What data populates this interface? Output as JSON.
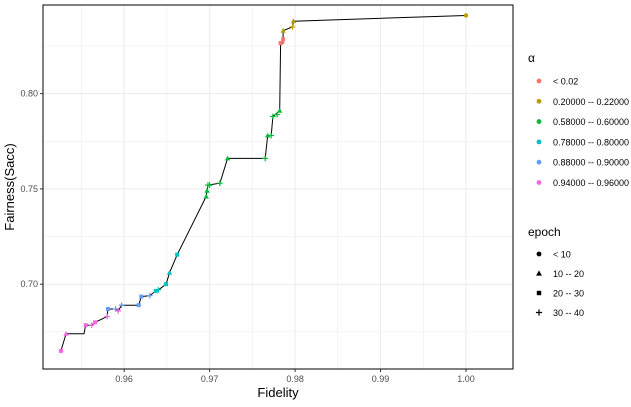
{
  "chart_data": {
    "type": "line",
    "xlabel": "Fidelity",
    "ylabel": "Fairness(Sacc)",
    "xlim": [
      0.9505,
      1.0055
    ],
    "ylim": [
      0.6555,
      0.8465
    ],
    "x_ticks": [
      0.96,
      0.97,
      0.98,
      0.99,
      1.0
    ],
    "x_tick_labels": [
      "0.96",
      "0.97",
      "0.98",
      "0.99",
      "1.00"
    ],
    "y_ticks": [
      0.7,
      0.75,
      0.8
    ],
    "y_tick_labels": [
      "0.70",
      "0.75",
      "0.80"
    ],
    "grid": true,
    "legend_position": "right",
    "colors": {
      "panel_border": "#000000",
      "grid": "#ebebeb",
      "line": "#000000"
    },
    "color_legend": {
      "title": "α",
      "entries": [
        {
          "label": "< 0.02",
          "color": "#F8766D"
        },
        {
          "label": "0.20000 -- 0.22000",
          "color": "#B79F00"
        },
        {
          "label": "0.58000 -- 0.60000",
          "color": "#00BA38"
        },
        {
          "label": "0.78000 -- 0.80000",
          "color": "#00BFC4"
        },
        {
          "label": "0.88000 -- 0.90000",
          "color": "#619CFF"
        },
        {
          "label": "0.94000 -- 0.96000",
          "color": "#F564E3"
        }
      ]
    },
    "shape_legend": {
      "title": "epoch",
      "entries": [
        {
          "label": "< 10",
          "shape": "circle"
        },
        {
          "label": "10 -- 20",
          "shape": "triangle"
        },
        {
          "label": "20 -- 30",
          "shape": "square"
        },
        {
          "label": "30 -- 40",
          "shape": "plus"
        }
      ]
    },
    "line_path": [
      [
        0.9526,
        0.665
      ],
      [
        0.9532,
        0.674
      ],
      [
        0.9553,
        0.674
      ],
      [
        0.9555,
        0.6785
      ],
      [
        0.9562,
        0.6785
      ],
      [
        0.9566,
        0.68
      ],
      [
        0.958,
        0.683
      ],
      [
        0.9581,
        0.687
      ],
      [
        0.959,
        0.687
      ],
      [
        0.9593,
        0.686
      ],
      [
        0.9597,
        0.689
      ],
      [
        0.9617,
        0.689
      ],
      [
        0.962,
        0.6935
      ],
      [
        0.963,
        0.694
      ],
      [
        0.9637,
        0.6965
      ],
      [
        0.964,
        0.697
      ],
      [
        0.9649,
        0.7
      ],
      [
        0.9653,
        0.706
      ],
      [
        0.9662,
        0.7155
      ],
      [
        0.9696,
        0.746
      ],
      [
        0.9698,
        0.752
      ],
      [
        0.9712,
        0.753
      ],
      [
        0.9721,
        0.766
      ],
      [
        0.9765,
        0.766
      ],
      [
        0.9768,
        0.778
      ],
      [
        0.9772,
        0.778
      ],
      [
        0.9774,
        0.788
      ],
      [
        0.9782,
        0.791
      ],
      [
        0.9783,
        0.8265
      ],
      [
        0.9786,
        0.8265
      ],
      [
        0.9786,
        0.833
      ],
      [
        0.9797,
        0.835
      ],
      [
        0.9798,
        0.838
      ],
      [
        1.0,
        0.841
      ]
    ],
    "points": [
      {
        "x": 0.9526,
        "y": 0.665,
        "color": "#F564E3",
        "shape": "square"
      },
      {
        "x": 0.9532,
        "y": 0.674,
        "color": "#F564E3",
        "shape": "triangle"
      },
      {
        "x": 0.9555,
        "y": 0.6785,
        "color": "#F564E3",
        "shape": "square"
      },
      {
        "x": 0.9562,
        "y": 0.6785,
        "color": "#F564E3",
        "shape": "plus"
      },
      {
        "x": 0.9566,
        "y": 0.68,
        "color": "#F564E3",
        "shape": "square"
      },
      {
        "x": 0.958,
        "y": 0.683,
        "color": "#F564E3",
        "shape": "plus"
      },
      {
        "x": 0.9581,
        "y": 0.687,
        "color": "#619CFF",
        "shape": "square"
      },
      {
        "x": 0.959,
        "y": 0.687,
        "color": "#619CFF",
        "shape": "plus"
      },
      {
        "x": 0.9593,
        "y": 0.686,
        "color": "#F564E3",
        "shape": "plus"
      },
      {
        "x": 0.9597,
        "y": 0.689,
        "color": "#619CFF",
        "shape": "plus"
      },
      {
        "x": 0.9617,
        "y": 0.689,
        "color": "#619CFF",
        "shape": "square"
      },
      {
        "x": 0.962,
        "y": 0.6935,
        "color": "#619CFF",
        "shape": "square"
      },
      {
        "x": 0.963,
        "y": 0.694,
        "color": "#619CFF",
        "shape": "plus"
      },
      {
        "x": 0.9637,
        "y": 0.6965,
        "color": "#00BFC4",
        "shape": "square"
      },
      {
        "x": 0.964,
        "y": 0.697,
        "color": "#00BFC4",
        "shape": "plus"
      },
      {
        "x": 0.9649,
        "y": 0.7,
        "color": "#00BFC4",
        "shape": "square"
      },
      {
        "x": 0.9653,
        "y": 0.706,
        "color": "#00BFC4",
        "shape": "triangle"
      },
      {
        "x": 0.9662,
        "y": 0.7155,
        "color": "#00BFC4",
        "shape": "square"
      },
      {
        "x": 0.9696,
        "y": 0.746,
        "color": "#00BA38",
        "shape": "triangle"
      },
      {
        "x": 0.9697,
        "y": 0.749,
        "color": "#00BA38",
        "shape": "triangle"
      },
      {
        "x": 0.9698,
        "y": 0.752,
        "color": "#00BA38",
        "shape": "plus"
      },
      {
        "x": 0.97,
        "y": 0.752,
        "color": "#00BA38",
        "shape": "plus"
      },
      {
        "x": 0.9712,
        "y": 0.753,
        "color": "#00BA38",
        "shape": "plus"
      },
      {
        "x": 0.9721,
        "y": 0.766,
        "color": "#00BA38",
        "shape": "triangle"
      },
      {
        "x": 0.9765,
        "y": 0.766,
        "color": "#00BA38",
        "shape": "plus"
      },
      {
        "x": 0.9768,
        "y": 0.778,
        "color": "#00BA38",
        "shape": "triangle"
      },
      {
        "x": 0.9772,
        "y": 0.778,
        "color": "#00BA38",
        "shape": "plus"
      },
      {
        "x": 0.9774,
        "y": 0.788,
        "color": "#00BA38",
        "shape": "plus"
      },
      {
        "x": 0.9779,
        "y": 0.789,
        "color": "#00BA38",
        "shape": "plus"
      },
      {
        "x": 0.9782,
        "y": 0.791,
        "color": "#00BA38",
        "shape": "triangle"
      },
      {
        "x": 0.9783,
        "y": 0.8265,
        "color": "#F8766D",
        "shape": "square"
      },
      {
        "x": 0.9785,
        "y": 0.8275,
        "color": "#F8766D",
        "shape": "triangle"
      },
      {
        "x": 0.9786,
        "y": 0.8285,
        "color": "#F8766D",
        "shape": "square"
      },
      {
        "x": 0.9786,
        "y": 0.833,
        "color": "#B79F00",
        "shape": "triangle"
      },
      {
        "x": 0.9797,
        "y": 0.835,
        "color": "#B79F00",
        "shape": "plus"
      },
      {
        "x": 0.9798,
        "y": 0.838,
        "color": "#B79F00",
        "shape": "triangle"
      },
      {
        "x": 1.0,
        "y": 0.841,
        "color": "#B79F00",
        "shape": "circle"
      }
    ]
  }
}
